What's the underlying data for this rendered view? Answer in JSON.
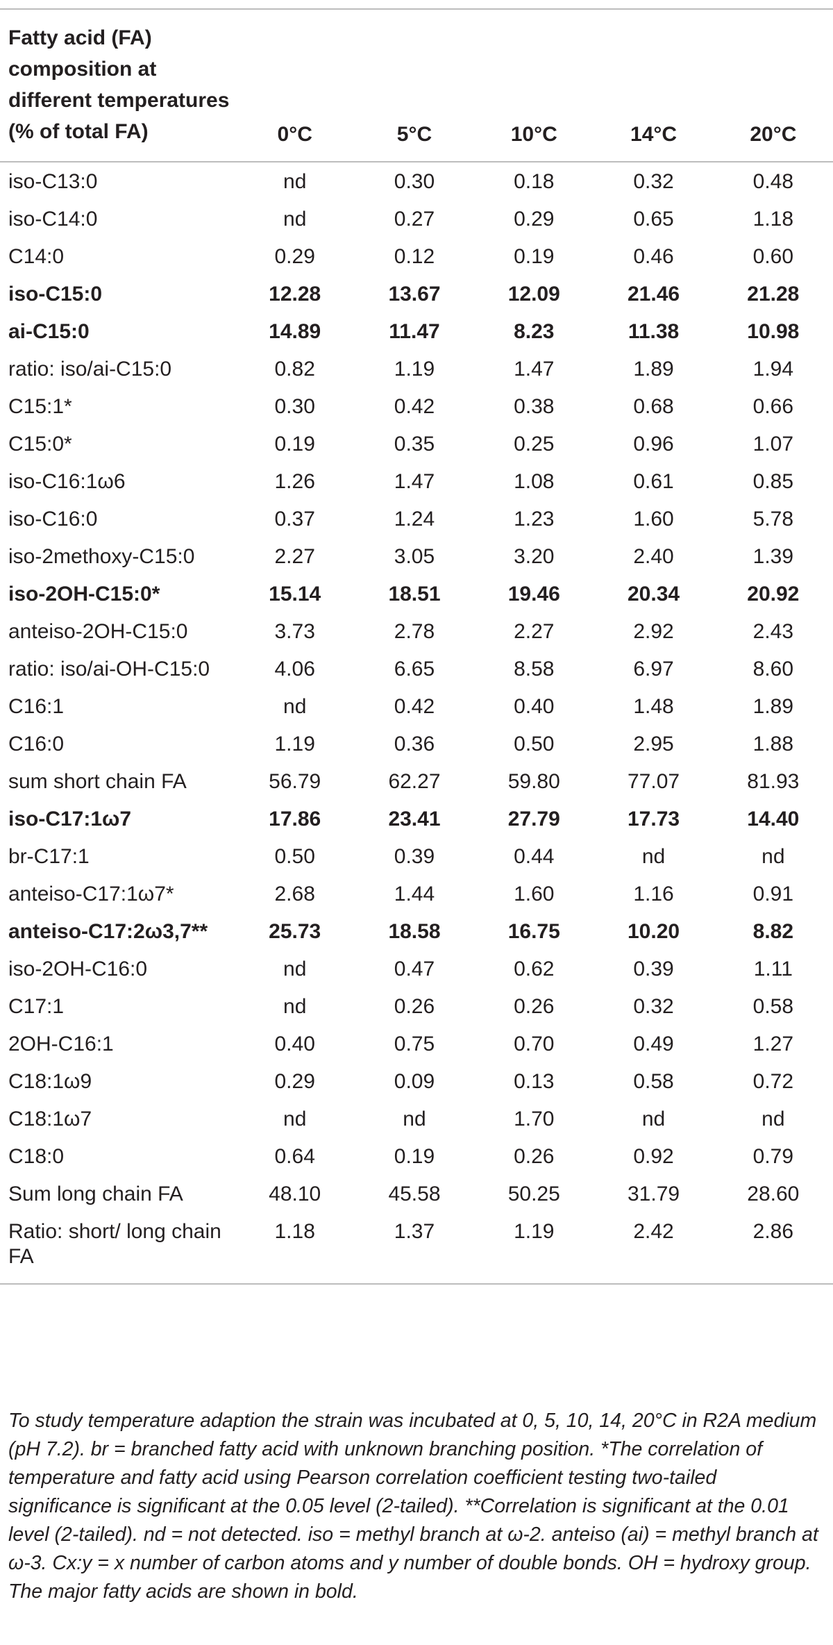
{
  "table": {
    "header": {
      "label": "Fatty acid (FA) composition at different temperatures (% of total FA)",
      "temps": [
        "0°C",
        "5°C",
        "10°C",
        "14°C",
        "20°C"
      ]
    },
    "rows": [
      {
        "label": "iso-C13:0",
        "values": [
          "nd",
          "0.30",
          "0.18",
          "0.32",
          "0.48"
        ]
      },
      {
        "label": "iso-C14:0",
        "values": [
          "nd",
          "0.27",
          "0.29",
          "0.65",
          "1.18"
        ]
      },
      {
        "label": "C14:0",
        "values": [
          "0.29",
          "0.12",
          "0.19",
          "0.46",
          "0.60"
        ]
      },
      {
        "label": "iso-C15:0",
        "values": [
          "12.28",
          "13.67",
          "12.09",
          "21.46",
          "21.28"
        ]
      },
      {
        "label": "ai-C15:0",
        "values": [
          "14.89",
          "11.47",
          "8.23",
          "11.38",
          "10.98"
        ]
      },
      {
        "label": "ratio: iso/ai-C15:0",
        "values": [
          "0.82",
          "1.19",
          "1.47",
          "1.89",
          "1.94"
        ]
      },
      {
        "label": "C15:1*",
        "values": [
          "0.30",
          "0.42",
          "0.38",
          "0.68",
          "0.66"
        ]
      },
      {
        "label": "C15:0*",
        "values": [
          "0.19",
          "0.35",
          "0.25",
          "0.96",
          "1.07"
        ]
      },
      {
        "label": "iso-C16:1ω6",
        "values": [
          "1.26",
          "1.47",
          "1.08",
          "0.61",
          "0.85"
        ]
      },
      {
        "label": "iso-C16:0",
        "values": [
          "0.37",
          "1.24",
          "1.23",
          "1.60",
          "5.78"
        ]
      },
      {
        "label": "iso-2methoxy-C15:0",
        "values": [
          "2.27",
          "3.05",
          "3.20",
          "2.40",
          "1.39"
        ]
      },
      {
        "label": "iso-2OH-C15:0*",
        "values": [
          "15.14",
          "18.51",
          "19.46",
          "20.34",
          "20.92"
        ]
      },
      {
        "label": "anteiso-2OH-C15:0",
        "values": [
          "3.73",
          "2.78",
          "2.27",
          "2.92",
          "2.43"
        ]
      },
      {
        "label": "ratio: iso/ai-OH-C15:0",
        "values": [
          "4.06",
          "6.65",
          "8.58",
          "6.97",
          "8.60"
        ]
      },
      {
        "label": "C16:1",
        "values": [
          "nd",
          "0.42",
          "0.40",
          "1.48",
          "1.89"
        ]
      },
      {
        "label": "C16:0",
        "values": [
          "1.19",
          "0.36",
          "0.50",
          "2.95",
          "1.88"
        ]
      },
      {
        "label": "sum short chain FA",
        "values": [
          "56.79",
          "62.27",
          "59.80",
          "77.07",
          "81.93"
        ]
      },
      {
        "label": "iso-C17:1ω7",
        "values": [
          "17.86",
          "23.41",
          "27.79",
          "17.73",
          "14.40"
        ]
      },
      {
        "label": "br-C17:1",
        "values": [
          "0.50",
          "0.39",
          "0.44",
          "nd",
          "nd"
        ]
      },
      {
        "label": "anteiso-C17:1ω7*",
        "values": [
          "2.68",
          "1.44",
          "1.60",
          "1.16",
          "0.91"
        ]
      },
      {
        "label": "anteiso-C17:2ω3,7**",
        "values": [
          "25.73",
          "18.58",
          "16.75",
          "10.20",
          "8.82"
        ]
      },
      {
        "label": "iso-2OH-C16:0",
        "values": [
          "nd",
          "0.47",
          "0.62",
          "0.39",
          "1.11"
        ]
      },
      {
        "label": "C17:1",
        "values": [
          "nd",
          "0.26",
          "0.26",
          "0.32",
          "0.58"
        ]
      },
      {
        "label": "2OH-C16:1",
        "values": [
          "0.40",
          "0.75",
          "0.70",
          "0.49",
          "1.27"
        ]
      },
      {
        "label": "C18:1ω9",
        "values": [
          "0.29",
          "0.09",
          "0.13",
          "0.58",
          "0.72"
        ]
      },
      {
        "label": "C18:1ω7",
        "values": [
          "nd",
          "nd",
          "1.70",
          "nd",
          "nd"
        ]
      },
      {
        "label": "C18:0",
        "values": [
          "0.64",
          "0.19",
          "0.26",
          "0.92",
          "0.79"
        ]
      },
      {
        "label": "Sum long chain FA",
        "values": [
          "48.10",
          "45.58",
          "50.25",
          "31.79",
          "28.60"
        ]
      },
      {
        "label": "Ratio: short/ long chain FA",
        "values": [
          "1.18",
          "1.37",
          "1.19",
          "2.42",
          "2.86"
        ]
      }
    ]
  },
  "footnote": {
    "s1": "To study temperature adaption the strain was incubated at 0, 5, 10, 14, 20°C in R2A medium (pH 7.2). br = branched fatty acid with unknown branching position.",
    "s2": "*The correlation of temperature and fatty acid using Pearson correlation coefficient testing two-tailed significance is significant at the 0.05 level (2-tailed).",
    "s3": "**Correlation is significant at the 0.01 level (2-tailed).",
    "s4": "nd = not detected. iso = methyl branch at ω-2. anteiso (ai) = methyl branch at ω-3.",
    "s5": "Cx:y = x number of carbon atoms and y number of double bonds.",
    "s6": "OH = hydroxy group.",
    "s7": "The major fatty acids are shown in bold."
  }
}
